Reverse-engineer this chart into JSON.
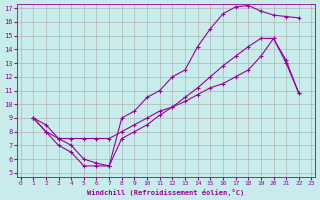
{
  "xlabel": "Windchill (Refroidissement éolien,°C)",
  "bg_color": "#c8ecec",
  "line_color": "#990099",
  "grid_color": "#aaaaaa",
  "xlim": [
    0,
    23
  ],
  "ylim": [
    5,
    17
  ],
  "xticks": [
    0,
    1,
    2,
    3,
    4,
    5,
    6,
    7,
    8,
    9,
    10,
    11,
    12,
    13,
    14,
    15,
    16,
    17,
    18,
    19,
    20,
    21,
    22,
    23
  ],
  "yticks": [
    5,
    6,
    7,
    8,
    9,
    10,
    11,
    12,
    13,
    14,
    15,
    16,
    17
  ],
  "line1_x": [
    1,
    2,
    3,
    4,
    5,
    6,
    7,
    8,
    9,
    10,
    11,
    12,
    13,
    14,
    15,
    16,
    17,
    18,
    19,
    20,
    21,
    22
  ],
  "line1_y": [
    9.0,
    8.0,
    7.0,
    6.5,
    5.5,
    5.5,
    5.5,
    9.0,
    9.5,
    10.5,
    11.0,
    12.0,
    12.5,
    14.2,
    15.5,
    16.6,
    17.1,
    17.2,
    16.8,
    16.5,
    16.4,
    16.3
  ],
  "line2_x": [
    1,
    2,
    3,
    4,
    5,
    6,
    7,
    8,
    9,
    10,
    11,
    12,
    13,
    14,
    15,
    16,
    17,
    18,
    19,
    20,
    21,
    22
  ],
  "line2_y": [
    9.0,
    8.5,
    7.5,
    7.5,
    7.5,
    7.5,
    7.5,
    8.0,
    8.5,
    9.0,
    9.5,
    9.8,
    10.2,
    10.7,
    11.2,
    11.5,
    12.0,
    12.5,
    13.5,
    14.8,
    13.0,
    10.8
  ],
  "line3_x": [
    1,
    2,
    3,
    4,
    5,
    6,
    7,
    8,
    9,
    10,
    11,
    12,
    13,
    14,
    15,
    16,
    17,
    18,
    19,
    20,
    21,
    22
  ],
  "line3_y": [
    9.0,
    8.0,
    7.5,
    7.0,
    6.0,
    5.7,
    5.5,
    7.5,
    8.0,
    8.5,
    9.2,
    9.8,
    10.5,
    11.2,
    12.0,
    12.8,
    13.5,
    14.2,
    14.8,
    14.8,
    13.2,
    10.8
  ]
}
